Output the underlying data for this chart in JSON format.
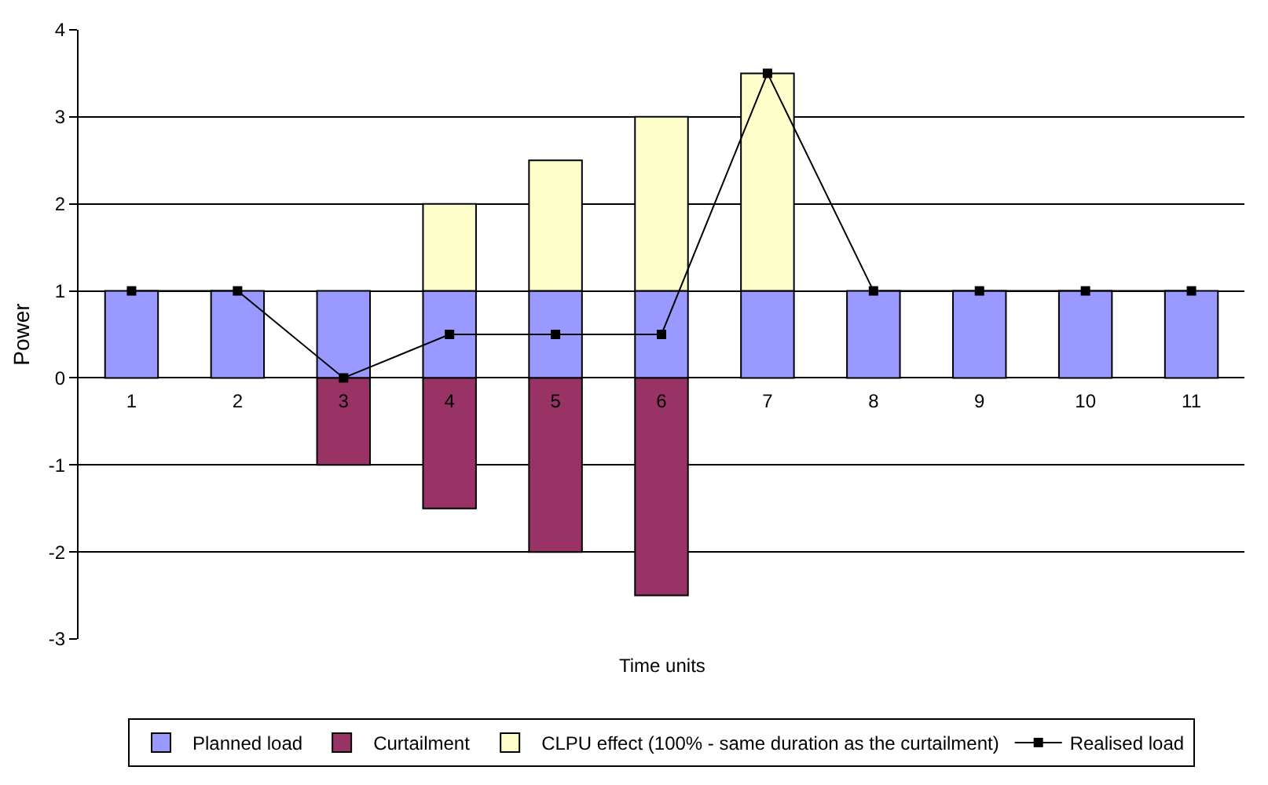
{
  "chart_data": {
    "type": "bar",
    "stacked": true,
    "categories": [
      "1",
      "2",
      "3",
      "4",
      "5",
      "6",
      "7",
      "8",
      "9",
      "10",
      "11"
    ],
    "series": [
      {
        "name": "Planned load",
        "color": "#9999ff",
        "values": [
          1,
          1,
          1,
          1,
          1,
          1,
          1,
          1,
          1,
          1,
          1
        ]
      },
      {
        "name": "Curtailment",
        "color": "#993366",
        "values": [
          null,
          null,
          -1,
          -1.5,
          -2,
          -2.5,
          null,
          null,
          null,
          null,
          null
        ]
      },
      {
        "name": "CLPU effect (100% - same duration as the curtailment)",
        "color": "#ffffcc",
        "values": [
          null,
          null,
          null,
          1,
          1.5,
          2,
          2.5,
          null,
          null,
          null,
          null
        ]
      },
      {
        "name": "Realised load",
        "type": "line",
        "color": "#000000",
        "marker": "square",
        "values": [
          1,
          1,
          0,
          0.5,
          0.5,
          0.5,
          3.5,
          1,
          1,
          1,
          1
        ]
      }
    ],
    "xlabel": "Time units",
    "ylabel": "Power",
    "ylim": [
      -3,
      4
    ],
    "yticks": [
      -3,
      -2,
      -1,
      0,
      1,
      2,
      3,
      4
    ],
    "grid": "y",
    "legend": "bottom"
  }
}
